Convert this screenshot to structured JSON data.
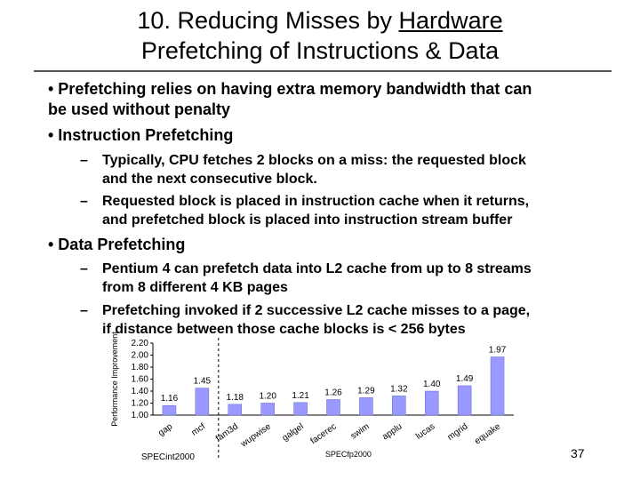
{
  "title": {
    "line1": "10. Reducing Misses by ",
    "line1_underlined": "Hardware",
    "line2": "Prefetching of Instructions & Data"
  },
  "bullets": {
    "b1_line1": "• Prefetching relies on having extra memory bandwidth that can",
    "b1_line2": "be used without penalty",
    "b2": "• Instruction Prefetching",
    "b2_sub1_line1": "Typically, CPU fetches 2 blocks on a miss: the requested block",
    "b2_sub1_line2": "and the next consecutive block.",
    "b2_sub2_line1": "Requested block is placed in instruction cache when it returns,",
    "b2_sub2_line2": "and prefetched block is placed into instruction stream buffer",
    "b3": "• Data Prefetching",
    "b3_sub1_line1": "Pentium 4 can prefetch data into L2 cache from up to 8 streams",
    "b3_sub1_line2": "from 8 different 4 KB pages",
    "b3_sub2_line1": "Prefetching invoked if 2 successive L2 cache misses to a page,",
    "b3_sub2_line2": "if distance between those cache blocks is < 256 bytes",
    "dash": "–"
  },
  "chart_data": {
    "type": "bar",
    "ylabel": "Performance Improvement",
    "ylim": [
      1.0,
      2.2
    ],
    "yticks": [
      "2.20",
      "2.00",
      "1.80",
      "1.60",
      "1.40",
      "1.20",
      "1.00"
    ],
    "categories": [
      "gap",
      "mcf",
      "fam3d",
      "wupwise",
      "galgel",
      "facerec",
      "swim",
      "applu",
      "lucas",
      "mgrid",
      "equake"
    ],
    "values": [
      1.16,
      1.45,
      1.18,
      1.2,
      1.21,
      1.26,
      1.29,
      1.32,
      1.4,
      1.49,
      1.97
    ],
    "value_labels": [
      "1.16",
      "1.45",
      "1.18",
      "1.20",
      "1.21",
      "1.26",
      "1.29",
      "1.32",
      "1.40",
      "1.49",
      "1.97"
    ],
    "groups": [
      "SPECint2000",
      "SPECfp2000"
    ],
    "bar_color": "#9999ff"
  },
  "slide_number": "37"
}
